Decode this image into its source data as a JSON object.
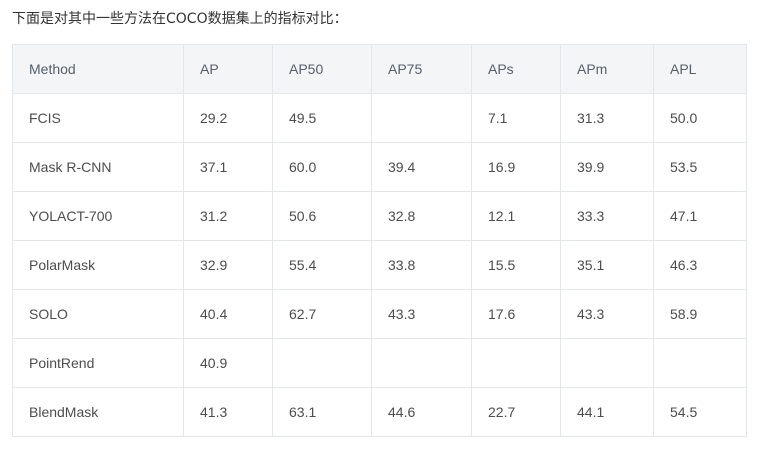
{
  "intro_text": "下面是对其中一些方法在COCO数据集上的指标对比：",
  "table": {
    "headers": [
      "Method",
      "AP",
      "AP50",
      "AP75",
      "APs",
      "APm",
      "APL"
    ],
    "rows": [
      [
        "FCIS",
        "29.2",
        "49.5",
        "",
        "7.1",
        "31.3",
        "50.0"
      ],
      [
        "Mask R-CNN",
        "37.1",
        "60.0",
        "39.4",
        "16.9",
        "39.9",
        "53.5"
      ],
      [
        "YOLACT-700",
        "31.2",
        "50.6",
        "32.8",
        "12.1",
        "33.3",
        "47.1"
      ],
      [
        "PolarMask",
        "32.9",
        "55.4",
        "33.8",
        "15.5",
        "35.1",
        "46.3"
      ],
      [
        "SOLO",
        "40.4",
        "62.7",
        "43.3",
        "17.6",
        "43.3",
        "58.9"
      ],
      [
        "PointRend",
        "40.9",
        "",
        "",
        "",
        "",
        ""
      ],
      [
        "BlendMask",
        "41.3",
        "63.1",
        "44.6",
        "22.7",
        "44.1",
        "54.5"
      ]
    ]
  }
}
